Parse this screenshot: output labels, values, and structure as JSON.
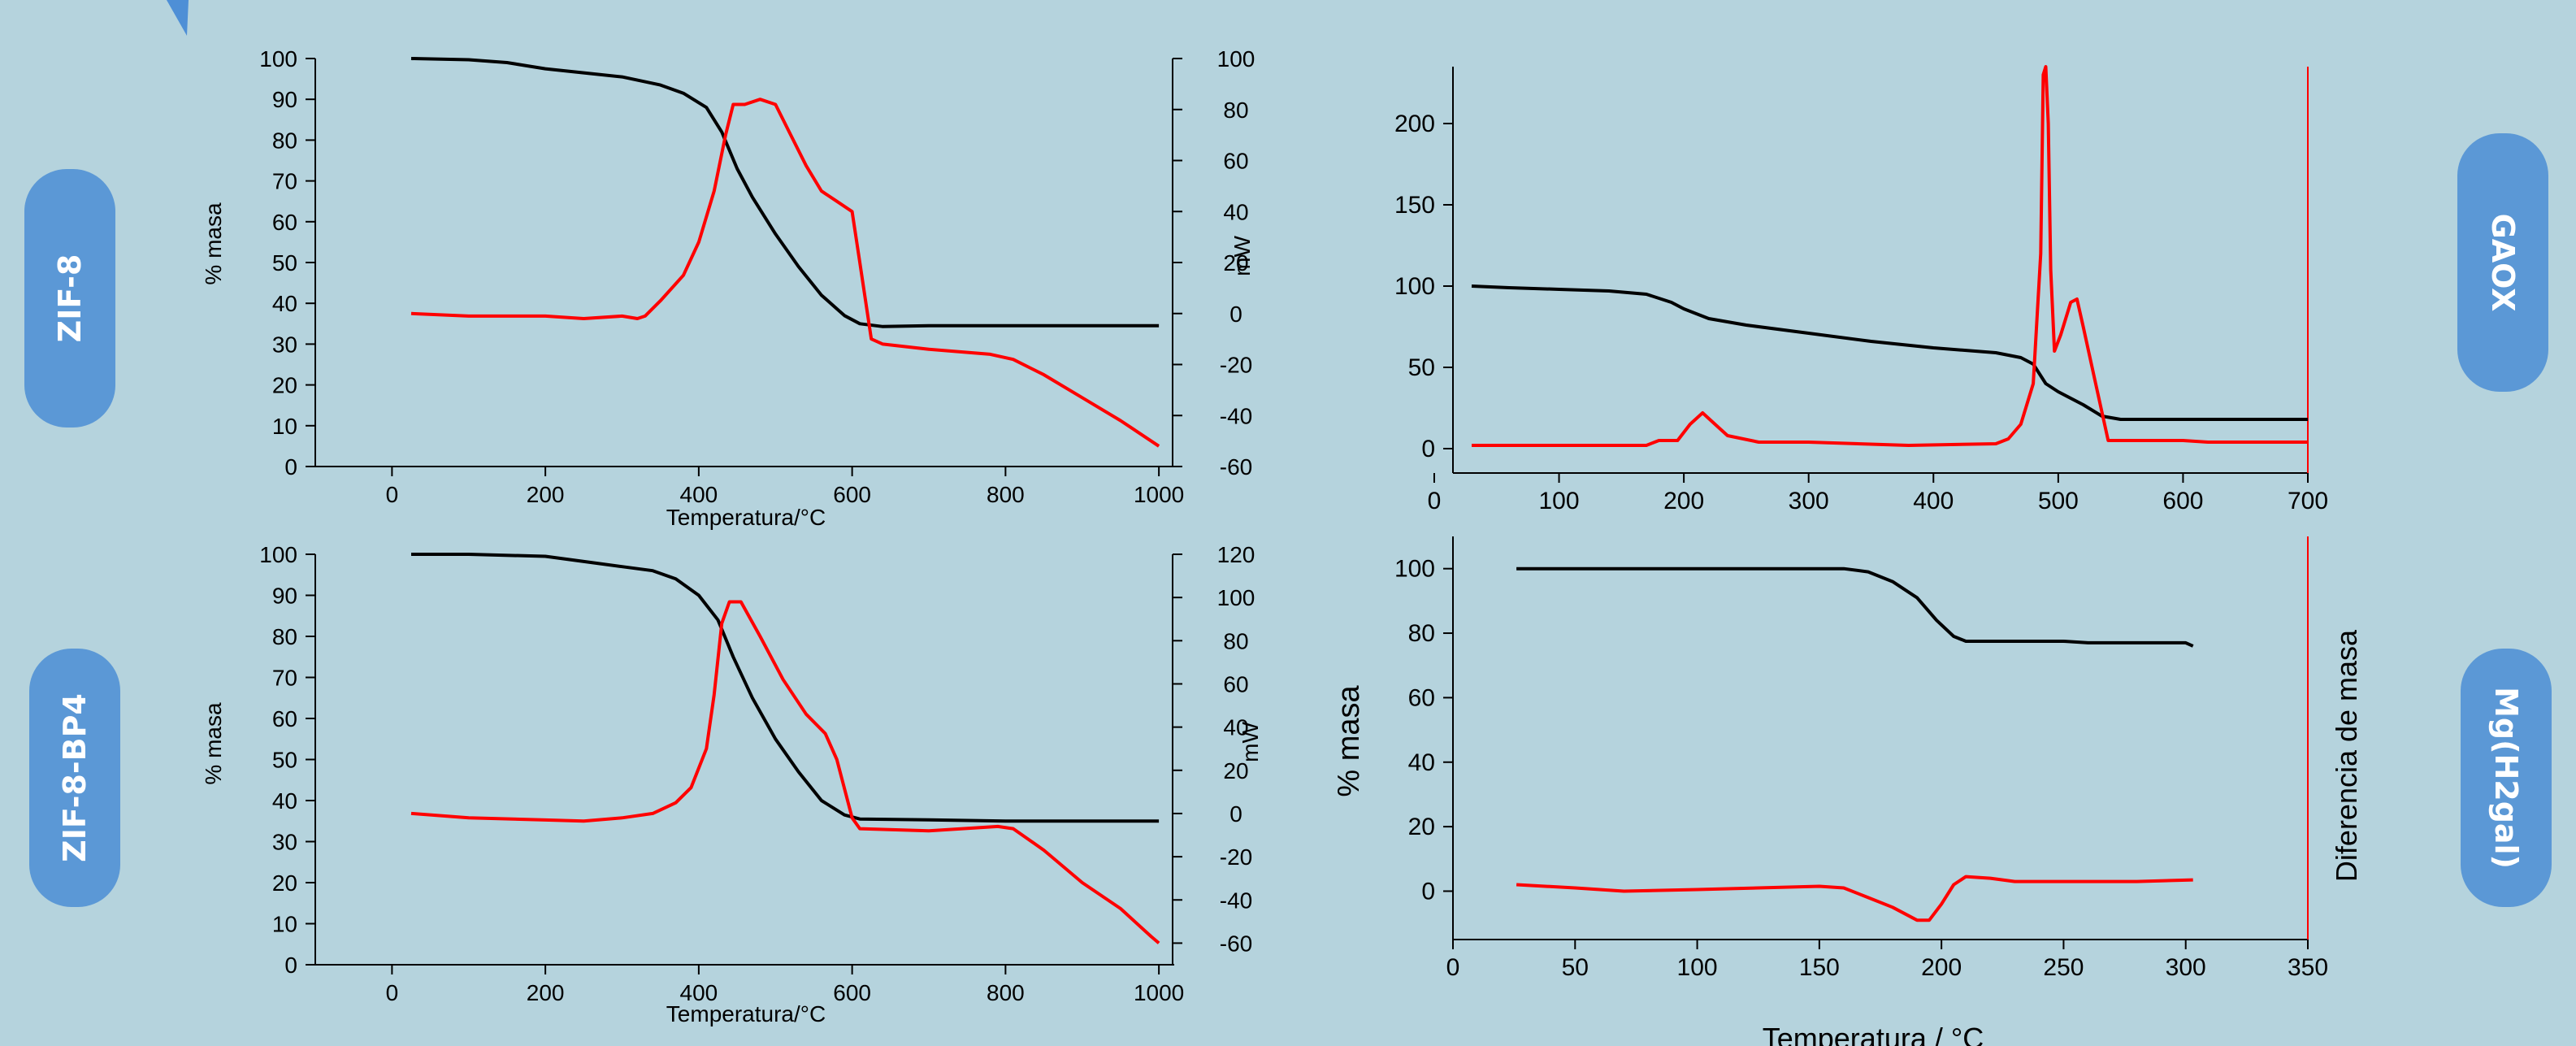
{
  "badges": [
    "ZIF-8",
    "ZIF-8-BP4",
    "GAOX",
    "Mg(H2gal)"
  ],
  "colors": {
    "background": "#b5d3dd",
    "badge": "#5b98d6",
    "mass_curve": "#000000",
    "signal_curve": "#ff0000",
    "corner_triangle": "#4e8fd6"
  },
  "chart_data": [
    {
      "type": "line",
      "id": "zif8",
      "xlabel": "Temperatura/°C",
      "ylabel": "% masa",
      "y2label": "mW",
      "xlim": [
        -100,
        1020
      ],
      "ylim": [
        0,
        100
      ],
      "y2lim": [
        -60,
        100
      ],
      "xticks": [
        0,
        200,
        400,
        600,
        800,
        1000
      ],
      "yticks": [
        0,
        10,
        20,
        30,
        40,
        50,
        60,
        70,
        80,
        90,
        100
      ],
      "y2ticks": [
        -60,
        -40,
        -20,
        0,
        20,
        40,
        60,
        80,
        100
      ],
      "series": [
        {
          "axis": "left",
          "color": "#000000",
          "points": [
            [
              25,
              100
            ],
            [
              100,
              99.7
            ],
            [
              150,
              99
            ],
            [
              200,
              97.5
            ],
            [
              250,
              96.5
            ],
            [
              300,
              95.5
            ],
            [
              350,
              93.5
            ],
            [
              380,
              91.5
            ],
            [
              410,
              88
            ],
            [
              430,
              82
            ],
            [
              450,
              73
            ],
            [
              470,
              66
            ],
            [
              500,
              57
            ],
            [
              530,
              49
            ],
            [
              560,
              42
            ],
            [
              590,
              37
            ],
            [
              610,
              35
            ],
            [
              640,
              34.3
            ],
            [
              700,
              34.5
            ],
            [
              800,
              34.5
            ],
            [
              900,
              34.5
            ],
            [
              1000,
              34.5
            ]
          ]
        },
        {
          "axis": "right",
          "color": "#ff0000",
          "points": [
            [
              25,
              0
            ],
            [
              100,
              -1
            ],
            [
              200,
              -1
            ],
            [
              250,
              -2
            ],
            [
              300,
              -1
            ],
            [
              320,
              -2
            ],
            [
              330,
              -1
            ],
            [
              350,
              5
            ],
            [
              380,
              15
            ],
            [
              400,
              28
            ],
            [
              420,
              48
            ],
            [
              435,
              70
            ],
            [
              445,
              82
            ],
            [
              460,
              82
            ],
            [
              480,
              84
            ],
            [
              500,
              82
            ],
            [
              520,
              70
            ],
            [
              540,
              58
            ],
            [
              560,
              48
            ],
            [
              580,
              44
            ],
            [
              600,
              40
            ],
            [
              610,
              20
            ],
            [
              625,
              -10
            ],
            [
              640,
              -12
            ],
            [
              700,
              -14
            ],
            [
              780,
              -16
            ],
            [
              810,
              -18
            ],
            [
              850,
              -24
            ],
            [
              900,
              -33
            ],
            [
              950,
              -42
            ],
            [
              1000,
              -52
            ]
          ]
        }
      ]
    },
    {
      "type": "line",
      "id": "zif8bp4",
      "xlabel": "Temperatura/°C",
      "ylabel": "% masa",
      "y2label": "mW",
      "xlim": [
        -100,
        1020
      ],
      "ylim": [
        0,
        100
      ],
      "y2lim": [
        -70,
        120
      ],
      "xticks": [
        0,
        200,
        400,
        600,
        800,
        1000
      ],
      "yticks": [
        0,
        10,
        20,
        30,
        40,
        50,
        60,
        70,
        80,
        90,
        100
      ],
      "y2ticks": [
        -60,
        -40,
        -20,
        0,
        20,
        40,
        60,
        80,
        100,
        120
      ],
      "series": [
        {
          "axis": "left",
          "color": "#000000",
          "points": [
            [
              25,
              100
            ],
            [
              100,
              100
            ],
            [
              200,
              99.5
            ],
            [
              260,
              98
            ],
            [
              300,
              97
            ],
            [
              340,
              96
            ],
            [
              370,
              94
            ],
            [
              400,
              90
            ],
            [
              425,
              84
            ],
            [
              445,
              75
            ],
            [
              470,
              65
            ],
            [
              500,
              55
            ],
            [
              530,
              47
            ],
            [
              560,
              40
            ],
            [
              590,
              36.5
            ],
            [
              610,
              35.5
            ],
            [
              700,
              35.3
            ],
            [
              800,
              35
            ],
            [
              900,
              35
            ],
            [
              1000,
              35
            ]
          ]
        },
        {
          "axis": "right",
          "color": "#ff0000",
          "points": [
            [
              25,
              0
            ],
            [
              100,
              -2
            ],
            [
              200,
              -3
            ],
            [
              250,
              -3.5
            ],
            [
              300,
              -2
            ],
            [
              340,
              0
            ],
            [
              370,
              5
            ],
            [
              390,
              12
            ],
            [
              410,
              30
            ],
            [
              420,
              55
            ],
            [
              430,
              88
            ],
            [
              440,
              98
            ],
            [
              455,
              98
            ],
            [
              480,
              82
            ],
            [
              510,
              62
            ],
            [
              540,
              46
            ],
            [
              565,
              37
            ],
            [
              580,
              25
            ],
            [
              600,
              -2
            ],
            [
              610,
              -7
            ],
            [
              700,
              -8
            ],
            [
              790,
              -6
            ],
            [
              810,
              -7
            ],
            [
              850,
              -17
            ],
            [
              900,
              -32
            ],
            [
              950,
              -44
            ],
            [
              990,
              -57
            ],
            [
              1000,
              -60
            ]
          ]
        }
      ]
    },
    {
      "type": "line",
      "id": "gaox",
      "xlabel": "",
      "ylabel": "",
      "xlim": [
        15,
        700
      ],
      "ylim": [
        -15,
        235
      ],
      "xticks": [
        0,
        100,
        200,
        300,
        400,
        500,
        600,
        700
      ],
      "yticks": [
        0,
        50,
        100,
        150,
        200
      ],
      "series": [
        {
          "axis": "left",
          "color": "#000000",
          "points": [
            [
              30,
              100
            ],
            [
              60,
              99
            ],
            [
              100,
              98
            ],
            [
              140,
              97
            ],
            [
              170,
              95
            ],
            [
              190,
              90
            ],
            [
              200,
              86
            ],
            [
              220,
              80
            ],
            [
              250,
              76
            ],
            [
              300,
              71
            ],
            [
              350,
              66
            ],
            [
              400,
              62
            ],
            [
              450,
              59
            ],
            [
              470,
              56
            ],
            [
              480,
              52
            ],
            [
              490,
              40
            ],
            [
              500,
              35
            ],
            [
              520,
              27
            ],
            [
              535,
              20
            ],
            [
              550,
              18
            ],
            [
              600,
              18
            ],
            [
              700,
              18
            ]
          ]
        },
        {
          "axis": "right",
          "color": "#ff0000",
          "points": [
            [
              30,
              2
            ],
            [
              100,
              2
            ],
            [
              170,
              2
            ],
            [
              180,
              5
            ],
            [
              195,
              5
            ],
            [
              205,
              15
            ],
            [
              215,
              22
            ],
            [
              225,
              15
            ],
            [
              235,
              8
            ],
            [
              260,
              4
            ],
            [
              300,
              4
            ],
            [
              380,
              2
            ],
            [
              450,
              3
            ],
            [
              460,
              6
            ],
            [
              470,
              15
            ],
            [
              480,
              40
            ],
            [
              486,
              120
            ],
            [
              488,
              230
            ],
            [
              490,
              235
            ],
            [
              492,
              200
            ],
            [
              494,
              110
            ],
            [
              497,
              60
            ],
            [
              502,
              70
            ],
            [
              510,
              90
            ],
            [
              515,
              92
            ],
            [
              520,
              75
            ],
            [
              530,
              40
            ],
            [
              540,
              5
            ],
            [
              560,
              5
            ],
            [
              600,
              5
            ],
            [
              620,
              4
            ],
            [
              700,
              4
            ]
          ]
        }
      ]
    },
    {
      "type": "line",
      "id": "mg",
      "xlabel": "Temperatura / °C",
      "ylabel": "% masa",
      "y2label": "Diferencia de masa",
      "xlim": [
        0,
        350
      ],
      "ylim": [
        -15,
        110
      ],
      "xticks": [
        0,
        50,
        100,
        150,
        200,
        250,
        300,
        350
      ],
      "yticks": [
        0,
        20,
        40,
        60,
        80,
        100
      ],
      "series": [
        {
          "axis": "left",
          "color": "#000000",
          "points": [
            [
              26,
              100
            ],
            [
              80,
              100
            ],
            [
              160,
              100
            ],
            [
              170,
              99
            ],
            [
              180,
              96
            ],
            [
              190,
              91
            ],
            [
              198,
              84
            ],
            [
              205,
              79
            ],
            [
              210,
              77.5
            ],
            [
              250,
              77.5
            ],
            [
              260,
              77
            ],
            [
              300,
              77
            ],
            [
              303,
              76
            ]
          ]
        },
        {
          "axis": "right",
          "color": "#ff0000",
          "points": [
            [
              26,
              2
            ],
            [
              50,
              1
            ],
            [
              70,
              0
            ],
            [
              100,
              0.5
            ],
            [
              150,
              1.5
            ],
            [
              160,
              1
            ],
            [
              170,
              -2
            ],
            [
              180,
              -5
            ],
            [
              190,
              -9
            ],
            [
              195,
              -9
            ],
            [
              200,
              -4
            ],
            [
              205,
              2
            ],
            [
              210,
              4.5
            ],
            [
              220,
              4
            ],
            [
              230,
              3
            ],
            [
              280,
              3
            ],
            [
              303,
              3.5
            ]
          ]
        }
      ]
    }
  ]
}
